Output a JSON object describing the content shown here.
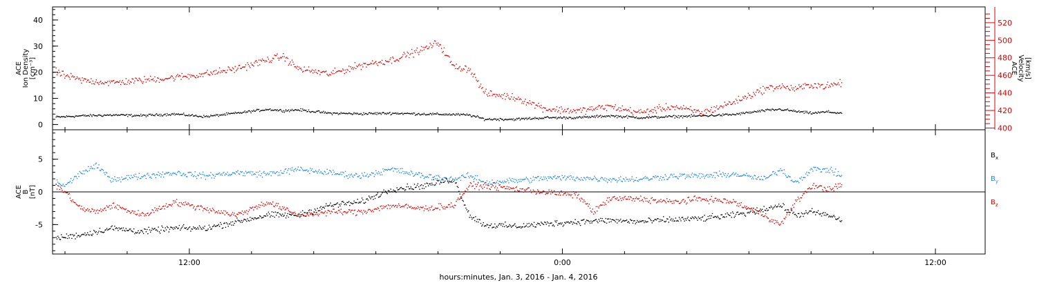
{
  "chart_data": [
    {
      "type": "scatter",
      "title": "",
      "xlabel": "hours:minutes, Jan.  3, 2016 - Jan.  4, 2016",
      "x_unit": "hours since 2016-01-03 00:00",
      "xlim": [
        7.6,
        37.6
      ],
      "x_ticks": [
        {
          "x": 12,
          "label": "12:00"
        },
        {
          "x": 24,
          "label": "0:00"
        },
        {
          "x": 36,
          "label": "12:00"
        }
      ],
      "left_axis": {
        "label": [
          "ACE",
          "Ion Density",
          "[cm⁻³]"
        ],
        "ylim": [
          -2,
          45
        ],
        "ticks": [
          0,
          10,
          20,
          30,
          40
        ],
        "color": "#000000"
      },
      "right_axis": {
        "label": [
          "ACE",
          "Velocity",
          "[km/s]"
        ],
        "ylim": [
          398,
          538
        ],
        "ticks": [
          400,
          420,
          440,
          460,
          480,
          500,
          520
        ],
        "color": "#dd0000"
      },
      "series": [
        {
          "name": "Ion Density",
          "axis": "left",
          "color": "#000000",
          "points": [
            [
              7.7,
              3.0
            ],
            [
              8.5,
              3.5
            ],
            [
              9.5,
              3.8
            ],
            [
              10.5,
              3.6
            ],
            [
              11.5,
              4.2
            ],
            [
              12.5,
              3.2
            ],
            [
              13.5,
              4.5
            ],
            [
              14.5,
              6.0
            ],
            [
              15.0,
              5.5
            ],
            [
              15.5,
              5.8
            ],
            [
              16.5,
              4.5
            ],
            [
              17.5,
              4.3
            ],
            [
              18.5,
              4.5
            ],
            [
              19.5,
              4.2
            ],
            [
              20.5,
              4.0
            ],
            [
              21.0,
              3.8
            ],
            [
              21.5,
              2.2
            ],
            [
              22.5,
              2.2
            ],
            [
              23.5,
              2.8
            ],
            [
              24.5,
              2.8
            ],
            [
              25.5,
              3.5
            ],
            [
              26.5,
              2.8
            ],
            [
              27.5,
              3.2
            ],
            [
              28.5,
              3.5
            ],
            [
              29.5,
              4.0
            ],
            [
              30.5,
              5.5
            ],
            [
              31.0,
              6.0
            ],
            [
              31.5,
              5.2
            ],
            [
              32.0,
              4.5
            ],
            [
              32.5,
              5.0
            ],
            [
              33.0,
              4.5
            ]
          ]
        },
        {
          "name": "Velocity",
          "axis": "right",
          "color": "#dd0000",
          "points": [
            [
              7.7,
              464
            ],
            [
              8.0,
              460
            ],
            [
              8.5,
              455
            ],
            [
              9.5,
              452
            ],
            [
              10.5,
              455
            ],
            [
              11.5,
              458
            ],
            [
              12.5,
              462
            ],
            [
              13.5,
              468
            ],
            [
              14.5,
              478
            ],
            [
              15.0,
              482
            ],
            [
              15.5,
              468
            ],
            [
              16.5,
              462
            ],
            [
              17.5,
              472
            ],
            [
              18.5,
              478
            ],
            [
              19.5,
              490
            ],
            [
              20.0,
              498
            ],
            [
              20.5,
              470
            ],
            [
              21.0,
              468
            ],
            [
              21.5,
              440
            ],
            [
              22.5,
              435
            ],
            [
              23.5,
              422
            ],
            [
              24.5,
              420
            ],
            [
              25.5,
              425
            ],
            [
              26.5,
              418
            ],
            [
              27.5,
              425
            ],
            [
              28.5,
              418
            ],
            [
              29.5,
              430
            ],
            [
              30.5,
              445
            ],
            [
              31.0,
              448
            ],
            [
              31.5,
              445
            ],
            [
              32.0,
              450
            ],
            [
              32.5,
              448
            ],
            [
              33.0,
              452
            ]
          ]
        }
      ]
    },
    {
      "type": "scatter",
      "title": "",
      "xlabel": "hours:minutes, Jan.  3, 2016 - Jan.  4, 2016",
      "x_unit": "hours since 2016-01-03 00:00",
      "xlim": [
        7.6,
        37.6
      ],
      "x_ticks": [
        {
          "x": 12,
          "label": "12:00"
        },
        {
          "x": 24,
          "label": "0:00"
        },
        {
          "x": 36,
          "label": "12:00"
        }
      ],
      "left_axis": {
        "label": [
          "ACE",
          "B",
          "[nT]"
        ],
        "ylim": [
          -9.5,
          9.5
        ],
        "ticks": [
          5,
          0,
          -5
        ],
        "zero_line": true
      },
      "legend": [
        {
          "name": "B",
          "sub": "x",
          "color": "#000000"
        },
        {
          "name": "B",
          "sub": "y",
          "color": "#1e88e5"
        },
        {
          "name": "B",
          "sub": "z",
          "color": "#dd0000"
        }
      ],
      "series": [
        {
          "name": "Bx",
          "color": "#000000",
          "points": [
            [
              7.7,
              -7.0
            ],
            [
              8.5,
              -6.5
            ],
            [
              9.5,
              -5.5
            ],
            [
              10.5,
              -6.0
            ],
            [
              11.5,
              -5.5
            ],
            [
              12.5,
              -5.5
            ],
            [
              13.5,
              -4.5
            ],
            [
              14.5,
              -3.5
            ],
            [
              15.5,
              -3.5
            ],
            [
              16.5,
              -2.0
            ],
            [
              17.5,
              -1.5
            ],
            [
              18.5,
              0.5
            ],
            [
              19.5,
              1.0
            ],
            [
              20.5,
              2.0
            ],
            [
              21.0,
              -3.5
            ],
            [
              21.5,
              -5.0
            ],
            [
              22.5,
              -5.2
            ],
            [
              23.5,
              -4.8
            ],
            [
              24.5,
              -4.5
            ],
            [
              25.5,
              -4.3
            ],
            [
              26.5,
              -4.5
            ],
            [
              27.5,
              -4.2
            ],
            [
              28.5,
              -4.0
            ],
            [
              29.5,
              -3.5
            ],
            [
              30.5,
              -2.5
            ],
            [
              31.0,
              -2.0
            ],
            [
              31.5,
              -3.5
            ],
            [
              32.0,
              -3.0
            ],
            [
              32.5,
              -3.5
            ],
            [
              33.0,
              -4.3
            ]
          ]
        },
        {
          "name": "By",
          "color": "#1e88e5",
          "points": [
            [
              7.7,
              1.5
            ],
            [
              8.0,
              1.0
            ],
            [
              8.5,
              3.0
            ],
            [
              9.0,
              4.0
            ],
            [
              9.5,
              2.0
            ],
            [
              10.5,
              2.5
            ],
            [
              11.5,
              3.0
            ],
            [
              12.5,
              2.5
            ],
            [
              13.5,
              3.0
            ],
            [
              14.5,
              2.8
            ],
            [
              15.5,
              3.5
            ],
            [
              16.5,
              3.0
            ],
            [
              17.5,
              2.5
            ],
            [
              18.5,
              3.5
            ],
            [
              19.5,
              2.5
            ],
            [
              20.5,
              2.0
            ],
            [
              21.0,
              2.5
            ],
            [
              21.5,
              1.5
            ],
            [
              22.5,
              1.8
            ],
            [
              23.5,
              2.2
            ],
            [
              24.5,
              2.2
            ],
            [
              25.5,
              2.0
            ],
            [
              26.5,
              2.0
            ],
            [
              27.5,
              2.5
            ],
            [
              28.5,
              2.5
            ],
            [
              29.5,
              2.8
            ],
            [
              30.5,
              2.0
            ],
            [
              31.0,
              3.5
            ],
            [
              31.5,
              1.5
            ],
            [
              32.0,
              3.5
            ],
            [
              32.5,
              3.5
            ],
            [
              33.0,
              2.5
            ]
          ]
        },
        {
          "name": "Bz",
          "color": "#dd0000",
          "points": [
            [
              7.7,
              1.0
            ],
            [
              8.0,
              0.0
            ],
            [
              8.5,
              -2.5
            ],
            [
              9.0,
              -3.0
            ],
            [
              9.5,
              -2.0
            ],
            [
              10.5,
              -3.5
            ],
            [
              11.5,
              -1.5
            ],
            [
              12.5,
              -2.5
            ],
            [
              13.5,
              -3.5
            ],
            [
              14.5,
              -1.5
            ],
            [
              15.5,
              -3.5
            ],
            [
              16.5,
              -3.0
            ],
            [
              17.5,
              -3.0
            ],
            [
              18.5,
              -2.0
            ],
            [
              19.5,
              -2.5
            ],
            [
              20.5,
              -2.0
            ],
            [
              21.0,
              1.0
            ],
            [
              21.5,
              1.0
            ],
            [
              22.5,
              0.5
            ],
            [
              23.5,
              0.0
            ],
            [
              24.5,
              -0.5
            ],
            [
              25.0,
              -3.0
            ],
            [
              25.5,
              -1.0
            ],
            [
              26.5,
              -1.0
            ],
            [
              27.5,
              -1.5
            ],
            [
              28.5,
              -1.0
            ],
            [
              29.5,
              -1.5
            ],
            [
              30.5,
              -3.5
            ],
            [
              31.0,
              -5.0
            ],
            [
              31.5,
              -1.5
            ],
            [
              32.0,
              1.0
            ],
            [
              32.5,
              0.5
            ],
            [
              33.0,
              1.0
            ]
          ]
        }
      ]
    }
  ]
}
